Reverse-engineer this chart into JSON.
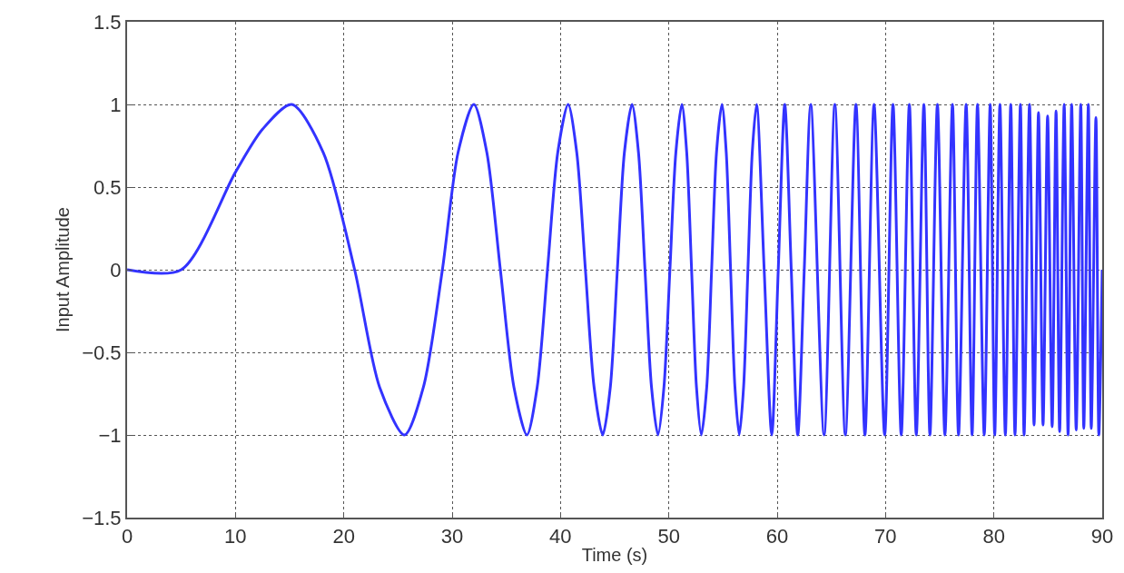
{
  "chart_data": {
    "type": "line",
    "xlabel": "Time (s)",
    "ylabel": "Input Amplitude",
    "xlim": [
      0,
      90
    ],
    "xticks": [
      0,
      10,
      20,
      30,
      40,
      50,
      60,
      70,
      80,
      90
    ],
    "ylim": [
      -1.5,
      1.5
    ],
    "yticks": [
      {
        "value": -1.5,
        "label": "−1.5"
      },
      {
        "value": -1,
        "label": "−1"
      },
      {
        "value": -0.5,
        "label": "−0.5"
      },
      0,
      0.5,
      1,
      1.5
    ],
    "grid": true,
    "marker": "none",
    "line_style": "solid",
    "series": [
      {
        "color": "#3333ff",
        "x": [
          0,
          5,
          10,
          12.5,
          15.2,
          18.1,
          21.0,
          23.3,
          25.6,
          27.35,
          29.1,
          30.55,
          32.0,
          33.2,
          34.45,
          35.7,
          36.9,
          37.85,
          38.8,
          39.75,
          40.7,
          41.5,
          42.3,
          43.1,
          43.9,
          44.6,
          45.25,
          45.9,
          46.6,
          47.2,
          47.8,
          48.4,
          49.0,
          49.55,
          50.1,
          50.65,
          51.2,
          51.65,
          52.1,
          52.55,
          53.0,
          53.5,
          53.95,
          54.4,
          54.9,
          55.3,
          55.7,
          56.1,
          56.5,
          56.9,
          57.3,
          57.7,
          58.1,
          58.8,
          59.5,
          60.1,
          60.7,
          61.3,
          61.9,
          62.5,
          63.1,
          64.33,
          65.32,
          66.29,
          67.27,
          68.1,
          68.94,
          69.92,
          70.69,
          71.45,
          72.2,
          72.84,
          73.54,
          74.1,
          74.79,
          75.48,
          76.18,
          76.74,
          77.44,
          77.99,
          78.49,
          79.11,
          79.66,
          80.08,
          80.56,
          81.06,
          81.56,
          81.95,
          82.45,
          82.79,
          83.29,
          83.71,
          84.12,
          84.54,
          84.96,
          85.38,
          85.74,
          86.07,
          86.49,
          86.85,
          87.18,
          87.6,
          88.02,
          88.3,
          88.72,
          88.99,
          89.42,
          89.69,
          90
        ],
        "values": [
          0,
          0,
          0.59,
          0.85,
          1,
          0.71,
          0,
          -0.71,
          -1,
          -0.71,
          0,
          0.71,
          1,
          0.71,
          0,
          -0.71,
          -1,
          -0.71,
          0,
          0.71,
          1,
          0.71,
          0,
          -0.71,
          -1,
          -0.71,
          0,
          0.71,
          1,
          0.71,
          0,
          -0.71,
          -1,
          -0.71,
          0,
          0.71,
          1,
          0.71,
          0,
          -0.71,
          -1,
          -0.71,
          0,
          0.71,
          1,
          0.71,
          0,
          -0.71,
          -1,
          -0.71,
          0,
          0.71,
          1,
          0,
          -1,
          0,
          1,
          0,
          -1,
          0,
          1,
          -1,
          1,
          -1,
          1,
          -1,
          1,
          -1,
          1,
          -1,
          1,
          -1,
          1,
          -1,
          1,
          -1,
          1,
          -1,
          1,
          -1,
          1,
          -1,
          1,
          -1,
          1,
          -1,
          1,
          -1,
          1,
          -1,
          1,
          -0.94,
          0.95,
          -0.94,
          0.93,
          -0.95,
          0.96,
          -0.98,
          1,
          -1,
          1,
          -0.97,
          1,
          -0.96,
          1,
          -0.96,
          0.92,
          -1,
          0
        ]
      }
    ]
  }
}
